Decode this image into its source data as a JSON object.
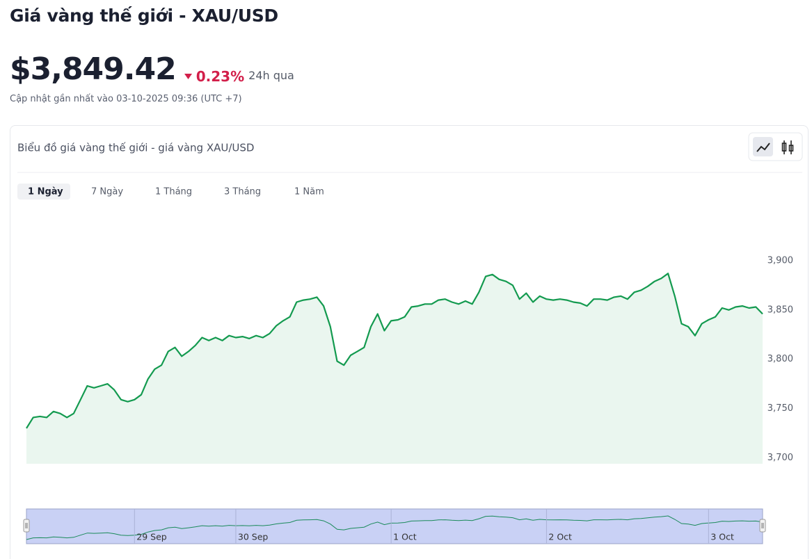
{
  "header": {
    "title": "Giá vàng thế giới - XAU/USD",
    "price": "$3,849.42",
    "change": "0.23%",
    "change_period": "24h qua",
    "updated": "Cập nhật gần nhất vào 03-10-2025 09:36 (UTC +7)"
  },
  "card": {
    "title": "Biểu đồ giá vàng thế giới - giá vàng XAU/USD",
    "tabs": [
      "1 Ngày",
      "7 Ngày",
      "1 Tháng",
      "3 Tháng",
      "1 Năm"
    ]
  },
  "chart_data": {
    "type": "line",
    "series": [
      {
        "color": "#139a4f",
        "fill": "#eaf6ef",
        "values": [
          3730,
          3741,
          3742,
          3741,
          3747,
          3745,
          3741,
          3745,
          3759,
          3773,
          3771,
          3773,
          3775,
          3769,
          3759,
          3757,
          3759,
          3764,
          3780,
          3790,
          3794,
          3808,
          3812,
          3803,
          3808,
          3814,
          3822,
          3819,
          3822,
          3819,
          3824,
          3822,
          3823,
          3821,
          3824,
          3822,
          3826,
          3834,
          3839,
          3843,
          3858,
          3860,
          3861,
          3863,
          3854,
          3833,
          3798,
          3794,
          3804,
          3808,
          3812,
          3833,
          3846,
          3829,
          3839,
          3840,
          3843,
          3853,
          3854,
          3856,
          3856,
          3860,
          3861,
          3858,
          3856,
          3859,
          3856,
          3868,
          3884,
          3886,
          3881,
          3879,
          3875,
          3861,
          3867,
          3858,
          3864,
          3861,
          3860,
          3861,
          3860,
          3858,
          3857,
          3854,
          3861,
          3861,
          3860,
          3863,
          3864,
          3861,
          3868,
          3870,
          3874,
          3879,
          3882,
          3887,
          3864,
          3836,
          3833,
          3824,
          3836,
          3840,
          3843,
          3852,
          3850,
          3853,
          3854,
          3852,
          3853,
          3846
        ]
      }
    ],
    "ylim": [
      3694,
      3950
    ],
    "yticks": [
      {
        "value": 3700,
        "label": "3,700"
      },
      {
        "value": 3750,
        "label": "3,750"
      },
      {
        "value": 3800,
        "label": "3,800"
      },
      {
        "value": 3850,
        "label": "3,850"
      },
      {
        "value": 3900,
        "label": "3,900"
      }
    ],
    "xticks": [
      {
        "value": 16,
        "label": "29 Sep"
      },
      {
        "value": 31,
        "label": "30 Sep"
      },
      {
        "value": 54,
        "label": "1 Oct"
      },
      {
        "value": 77,
        "label": "2 Oct"
      },
      {
        "value": 101,
        "label": "3 Oct"
      }
    ],
    "grid": false
  }
}
